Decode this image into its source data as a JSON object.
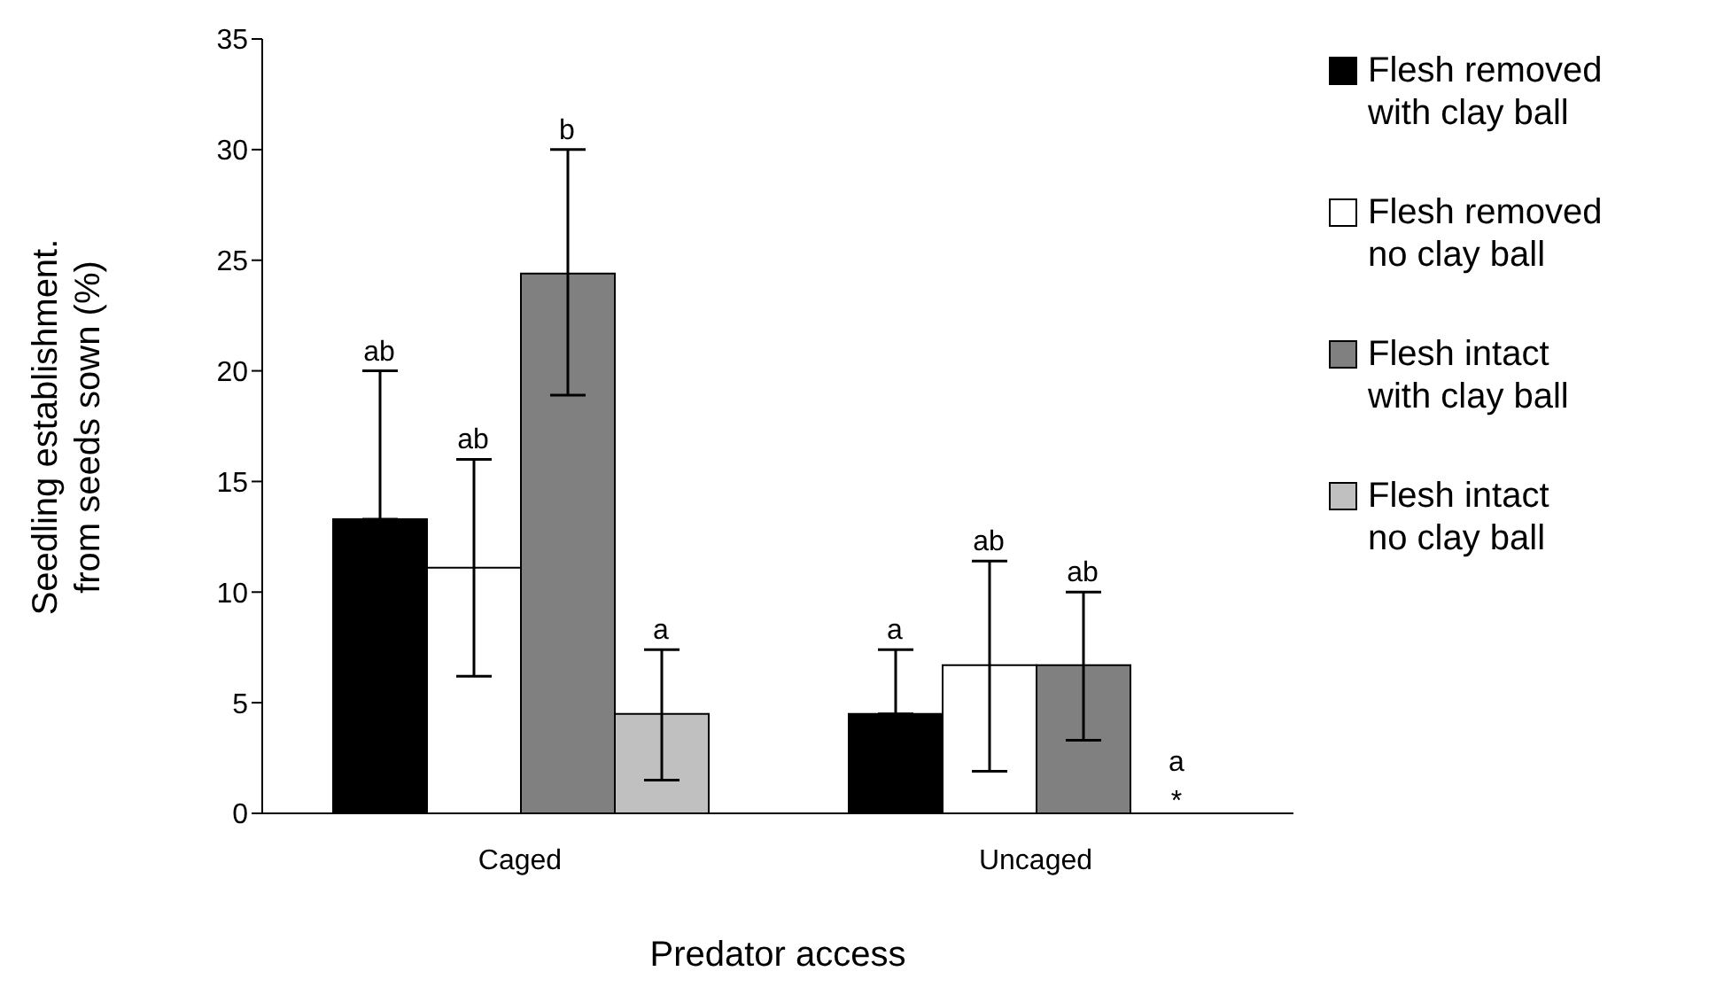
{
  "chart_data": {
    "type": "bar",
    "xlabel": "Predator access",
    "ylabel": "Seedling establishment. from seeds sown (%)",
    "categories": [
      "Caged",
      "Uncaged"
    ],
    "series": [
      {
        "name": "Flesh removed with clay ball",
        "color": "#000000",
        "values": [
          13.3,
          4.5
        ],
        "errors": [
          [
            13.3,
            20
          ],
          [
            4.5,
            7.4
          ]
        ]
      },
      {
        "name": "Flesh removed no clay ball",
        "color": "#ffffff",
        "values": [
          11.1,
          6.7
        ],
        "errors": [
          [
            6.2,
            16
          ],
          [
            1.9,
            11.4
          ]
        ]
      },
      {
        "name": "Flesh intact with clay ball",
        "color": "#808080",
        "values": [
          24.4,
          6.7
        ],
        "errors": [
          [
            18.9,
            30
          ],
          [
            3.3,
            10
          ]
        ]
      },
      {
        "name": "Flesh intact no clay ball",
        "color": "#c0c0c0",
        "values": [
          4.5,
          0
        ],
        "errors": [
          [
            1.5,
            7.4
          ],
          null
        ]
      }
    ],
    "annotations": [
      "ab",
      "ab",
      "b",
      "a",
      "a",
      "ab",
      "ab",
      "a",
      "*"
    ],
    "ylim": [
      0,
      35
    ],
    "yticks": [
      0,
      5,
      10,
      15,
      20,
      25,
      30,
      35
    ],
    "grid": false,
    "legend": "right"
  }
}
